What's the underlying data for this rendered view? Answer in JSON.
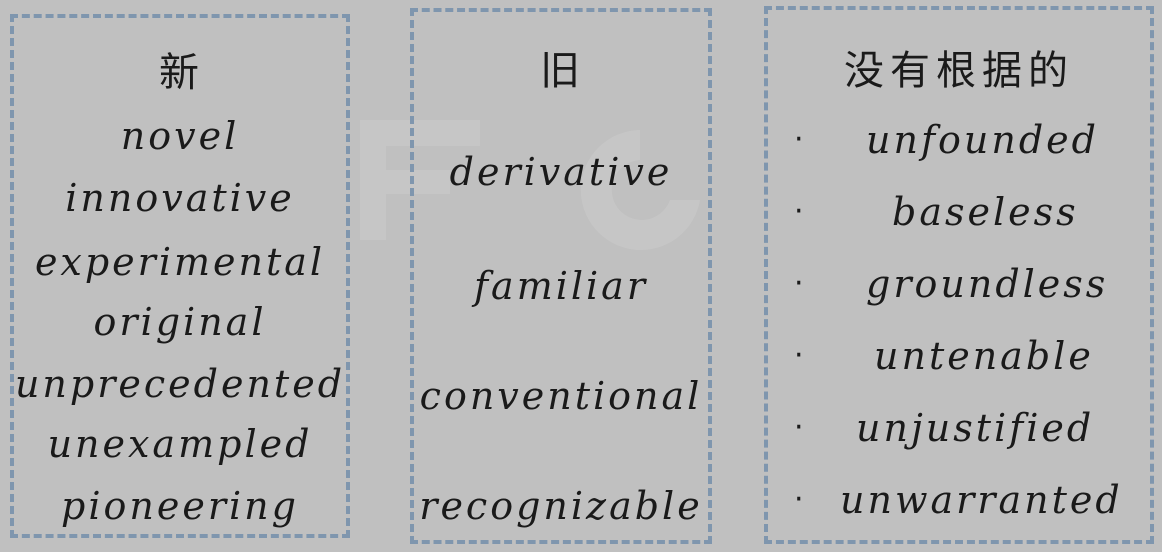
{
  "panels": [
    {
      "heading": "新",
      "words": [
        "novel",
        "innovative",
        "experimental",
        "original",
        "unprecedented",
        "unexampled",
        "pioneering"
      ]
    },
    {
      "heading": "旧",
      "words": [
        "derivative",
        "familiar",
        "conventional",
        "recognizable"
      ]
    },
    {
      "heading": "没有根据的",
      "bullet": "·",
      "words": [
        "unfounded",
        "baseless",
        "groundless",
        "untenable",
        "unjustified",
        "unwarranted"
      ]
    }
  ]
}
